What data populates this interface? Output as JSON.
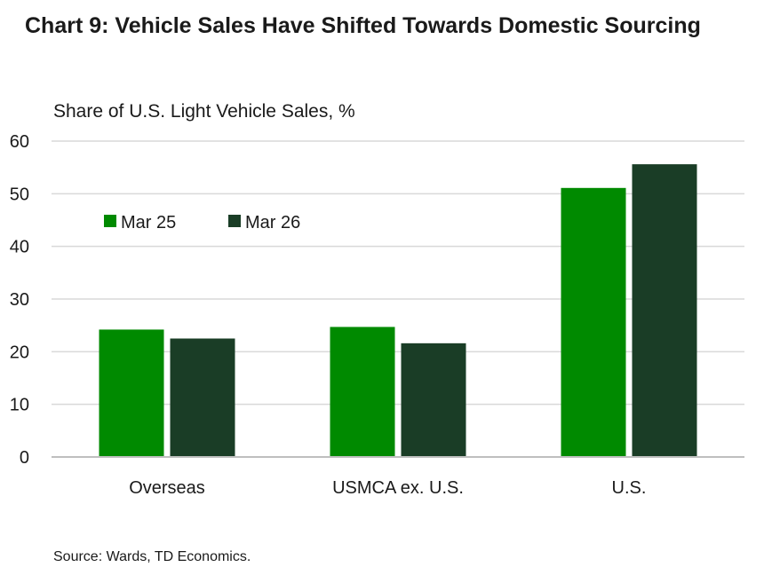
{
  "header": {
    "title": "Chart 9: Vehicle Sales Have Shifted Towards Domestic Sourcing",
    "subtitle": "Share of U.S. Light Vehicle Sales, %"
  },
  "footer": {
    "source": "Source: Wards, TD Economics."
  },
  "chart_data": {
    "type": "bar",
    "title": "Chart 9: Vehicle Sales Have Shifted Towards Domestic Sourcing",
    "subtitle": "Share of U.S. Light Vehicle Sales, %",
    "xlabel": "",
    "ylabel": "",
    "categories": [
      "Overseas",
      "USMCA ex. U.S.",
      "U.S."
    ],
    "series": [
      {
        "name": "Mar 25",
        "color": "#008A00",
        "values": [
          24.2,
          24.7,
          51.1
        ]
      },
      {
        "name": "Mar 26",
        "color": "#1A3D26",
        "values": [
          22.5,
          21.6,
          55.6
        ]
      }
    ],
    "ylim": [
      0,
      60
    ],
    "yticks": [
      0,
      10,
      20,
      30,
      40,
      50,
      60
    ],
    "grid": true,
    "legend_position": "top-left",
    "colors": {
      "gridline": "#d9d9d9",
      "axis": "#bfbfbf"
    }
  }
}
